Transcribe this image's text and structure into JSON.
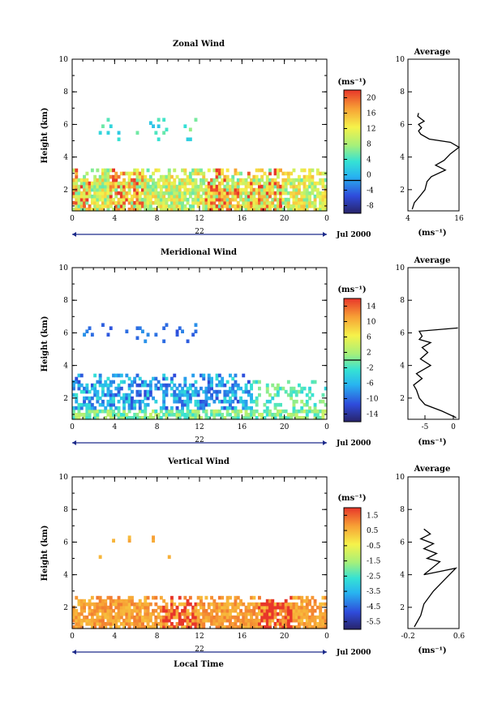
{
  "chart_data": [
    {
      "type": "heatmap",
      "title": "Zonal Wind",
      "ylabel": "Height (km)",
      "xlabel": "",
      "xlim": [
        0,
        24
      ],
      "ylim": [
        0.7,
        10
      ],
      "xticks": [
        "0",
        "4",
        "8",
        "12",
        "16",
        "20",
        "0"
      ],
      "yticks": [
        "2",
        "4",
        "6",
        "8",
        "10"
      ],
      "date_day": "22",
      "date_month": "Jul 2000",
      "colorbar": {
        "unit": "(ms⁻¹)",
        "min": -8,
        "max": 22,
        "ticks": [
          "20",
          "16",
          "12",
          "8",
          "4",
          "0",
          "-4",
          "-8"
        ],
        "contour": 0
      },
      "profile": {
        "title": "Average",
        "xlabel": "(ms⁻¹)",
        "xticks": [
          "4",
          "16"
        ],
        "xlim": [
          4,
          16
        ],
        "points": [
          [
            5.0,
            0.8
          ],
          [
            5.5,
            1.2
          ],
          [
            6.8,
            1.6
          ],
          [
            8.0,
            2.0
          ],
          [
            8.5,
            2.5
          ],
          [
            9.5,
            2.8
          ],
          [
            12.8,
            3.2
          ],
          [
            10.5,
            3.5
          ],
          [
            12.5,
            3.8
          ],
          [
            14.0,
            4.2
          ],
          [
            16.0,
            4.6
          ],
          [
            14.0,
            4.9
          ],
          [
            9.0,
            5.1
          ],
          [
            7.0,
            5.4
          ],
          [
            6.5,
            5.6
          ],
          [
            7.2,
            5.8
          ],
          [
            6.5,
            6.0
          ],
          [
            7.8,
            6.2
          ],
          [
            6.3,
            6.5
          ],
          [
            6.5,
            6.7
          ]
        ]
      },
      "bands": [
        {
          "x": [
            0,
            24
          ],
          "y": [
            0.7,
            3.2
          ],
          "density": 0.85,
          "vmin": 6,
          "vmax": 16,
          "hot": [
            0,
            5,
            14,
            18
          ]
        },
        {
          "x": [
            2,
            12
          ],
          "y": [
            5.0,
            6.4
          ],
          "density": 0.08,
          "vmin": 2,
          "vmax": 8
        }
      ]
    },
    {
      "type": "heatmap",
      "title": "Meridional Wind",
      "ylabel": "Height (km)",
      "xlabel": "",
      "xlim": [
        0,
        24
      ],
      "ylim": [
        0.7,
        10
      ],
      "xticks": [
        "0",
        "4",
        "8",
        "12",
        "16",
        "20",
        "0"
      ],
      "yticks": [
        "2",
        "4",
        "6",
        "8",
        "10"
      ],
      "date_day": "22",
      "date_month": "Jul 2000",
      "colorbar": {
        "unit": "(ms⁻¹)",
        "min": -16,
        "max": 16,
        "ticks": [
          "14",
          "10",
          "6",
          "2",
          "-2",
          "-6",
          "-10",
          "-14"
        ],
        "contour": 0
      },
      "profile": {
        "title": "Average",
        "xlabel": "(ms⁻¹)",
        "xticks": [
          "-5",
          "0"
        ],
        "xlim": [
          -8,
          1
        ],
        "points": [
          [
            0.5,
            0.8
          ],
          [
            -2.0,
            1.2
          ],
          [
            -5.0,
            1.6
          ],
          [
            -6.0,
            2.0
          ],
          [
            -6.5,
            2.5
          ],
          [
            -7.0,
            2.8
          ],
          [
            -5.5,
            3.2
          ],
          [
            -6.5,
            3.5
          ],
          [
            -4.0,
            4.0
          ],
          [
            -5.8,
            4.4
          ],
          [
            -4.5,
            4.8
          ],
          [
            -5.5,
            5.1
          ],
          [
            -4.0,
            5.4
          ],
          [
            -6.0,
            5.6
          ],
          [
            -5.5,
            5.8
          ],
          [
            -6.0,
            6.1
          ],
          [
            0.8,
            6.3
          ]
        ]
      },
      "bands": [
        {
          "x": [
            0,
            24
          ],
          "y": [
            0.7,
            1.3
          ],
          "density": 0.7,
          "vmin": -3,
          "vmax": 4
        },
        {
          "x": [
            0,
            17
          ],
          "y": [
            1.3,
            3.4
          ],
          "density": 0.55,
          "vmin": -12,
          "vmax": -2
        },
        {
          "x": [
            17,
            24
          ],
          "y": [
            1.3,
            3.0
          ],
          "density": 0.3,
          "vmin": -4,
          "vmax": 2
        },
        {
          "x": [
            1,
            12
          ],
          "y": [
            5.4,
            6.6
          ],
          "density": 0.06,
          "vmin": -12,
          "vmax": -8
        }
      ]
    },
    {
      "type": "heatmap",
      "title": "Vertical Wind",
      "ylabel": "Height (km)",
      "xlabel": "Local Time",
      "xlim": [
        0,
        24
      ],
      "ylim": [
        0.7,
        10
      ],
      "xticks": [
        "0",
        "4",
        "8",
        "12",
        "16",
        "20",
        "0"
      ],
      "yticks": [
        "2",
        "4",
        "6",
        "8",
        "10"
      ],
      "date_day": "22",
      "date_month": "Jul 2000",
      "colorbar": {
        "unit": "(ms⁻¹)",
        "min": -6.5,
        "max": 2.0,
        "ticks": [
          "1.5",
          "0.5",
          "-0.5",
          "-1.5",
          "-2.5",
          "-3.5",
          "-4.5",
          "-5.5"
        ],
        "contour": null
      },
      "profile": {
        "title": "Average",
        "xlabel": "(ms⁻¹)",
        "xticks": [
          "-0.2",
          "0.6"
        ],
        "xlim": [
          -0.2,
          0.6
        ],
        "points": [
          [
            -0.1,
            0.8
          ],
          [
            0.0,
            1.5
          ],
          [
            0.05,
            2.2
          ],
          [
            0.2,
            3.0
          ],
          [
            0.35,
            3.6
          ],
          [
            0.55,
            4.4
          ],
          [
            0.3,
            4.2
          ],
          [
            0.05,
            4.0
          ],
          [
            0.3,
            4.8
          ],
          [
            0.1,
            5.0
          ],
          [
            0.25,
            5.3
          ],
          [
            0.05,
            5.6
          ],
          [
            0.2,
            5.9
          ],
          [
            0.0,
            6.2
          ],
          [
            0.15,
            6.5
          ],
          [
            0.05,
            6.8
          ]
        ]
      },
      "bands": [
        {
          "x": [
            0,
            24
          ],
          "y": [
            0.7,
            2.6
          ],
          "density": 0.8,
          "vmin": 0.2,
          "vmax": 1.2,
          "hot": [
            10,
            19
          ]
        },
        {
          "x": [
            2,
            10
          ],
          "y": [
            5.0,
            6.6
          ],
          "density": 0.05,
          "vmin": 0.3,
          "vmax": 0.8
        }
      ]
    }
  ]
}
